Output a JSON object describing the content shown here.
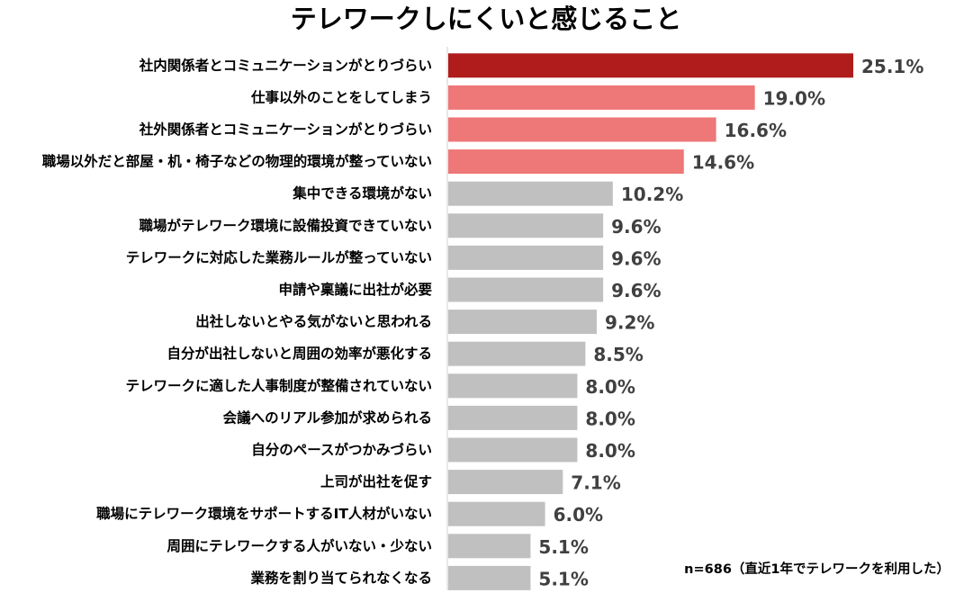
{
  "chart_data": {
    "type": "bar",
    "orientation": "horizontal",
    "title": "テレワークしにくいと感じること",
    "categories": [
      "社内関係者とコミュニケーションがとりづらい",
      "仕事以外のことをしてしまう",
      "社外関係者とコミュニケーションがとりづらい",
      "職場以外だと部屋・机・椅子などの物理的環境が整っていない",
      "集中できる環境がない",
      "職場がテレワーク環境に設備投資できていない",
      "テレワークに対応した業務ルールが整っていない",
      "申請や稟議に出社が必要",
      "出社しないとやる気がないと思われる",
      "自分が出社しないと周囲の効率が悪化する",
      "テレワークに適した人事制度が整備されていない",
      "会議へのリアル参加が求められる",
      "自分のペースがつかみづらい",
      "上司が出社を促す",
      "職場にテレワーク環境をサポートするIT人材がいない",
      "周囲にテレワークする人がいない・少ない",
      "業務を割り当てられなくなる"
    ],
    "values": [
      25.1,
      19.0,
      16.6,
      14.6,
      10.2,
      9.6,
      9.6,
      9.6,
      9.2,
      8.5,
      8.0,
      8.0,
      8.0,
      7.1,
      6.0,
      5.1,
      5.1
    ],
    "value_labels": [
      "25.1%",
      "19.0%",
      "16.6%",
      "14.6%",
      "10.2%",
      "9.6%",
      "9.6%",
      "9.6%",
      "9.2%",
      "8.5%",
      "8.0%",
      "8.0%",
      "8.0%",
      "7.1%",
      "6.0%",
      "5.1%",
      "5.1%"
    ],
    "bar_colors": [
      "#b01c1c",
      "#ee7777",
      "#ee7777",
      "#ee7777",
      "#c0c0c0",
      "#c0c0c0",
      "#c0c0c0",
      "#c0c0c0",
      "#c0c0c0",
      "#c0c0c0",
      "#c0c0c0",
      "#c0c0c0",
      "#c0c0c0",
      "#c0c0c0",
      "#c0c0c0",
      "#c0c0c0",
      "#c0c0c0"
    ],
    "xlim": [
      0,
      25.1
    ],
    "xlabel": "",
    "ylabel": "",
    "grid": false,
    "note": "n=686（直近1年でテレワークを利用した）"
  }
}
